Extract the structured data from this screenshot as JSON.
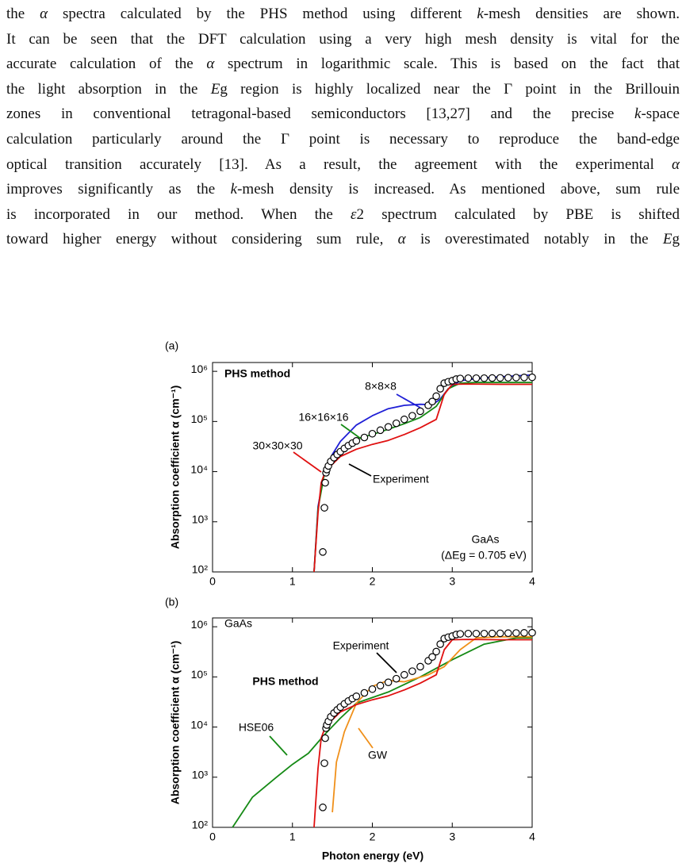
{
  "paragraph": {
    "lines": [
      [
        "the ",
        "α",
        " spectra calculated by the PHS method using different ",
        "k",
        "-mesh densities are shown."
      ],
      [
        "It can be seen that the DFT calculation using a very high mesh density is vital for the"
      ],
      [
        "accurate calculation of the ",
        "α",
        " spectrum in logarithmic scale. This is based on the fact that"
      ],
      [
        "the light absorption in the ",
        "E",
        "g region is highly localized near the Γ point in the Brillouin"
      ],
      [
        "zones in conventional tetragonal-based semiconductors [13,27] and the precise ",
        "k",
        "-space"
      ],
      [
        "calculation particularly around the Γ point is necessary to reproduce the band-edge"
      ],
      [
        "optical transition accurately [13]. As a result, the agreement with the experimental ",
        "α"
      ],
      [
        "improves significantly as the ",
        "k",
        "-mesh density is increased. As mentioned above, sum rule"
      ],
      [
        "is incorporated in our method. When the ",
        "ε",
        "2 spectrum calculated by PBE is shifted"
      ],
      [
        "toward higher energy without considering sum rule, ",
        "α",
        " is overestimated notably in the ",
        "E",
        "g"
      ]
    ]
  },
  "chart_data": [
    {
      "type": "line",
      "panel_label": "(a)",
      "title": "PHS method",
      "ylabel": "Absorption coefficient α (cm⁻¹)",
      "annotations": [
        "GaAs",
        "(ΔEg = 0.705 eV)"
      ],
      "xlim": [
        0,
        4
      ],
      "xticks": [
        0,
        1,
        2,
        3,
        4
      ],
      "ylim": [
        100,
        1500000
      ],
      "log_y": true,
      "yticks": [
        {
          "value": 100,
          "label": "10²"
        },
        {
          "value": 1000,
          "label": "10³"
        },
        {
          "value": 10000,
          "label": "10⁴"
        },
        {
          "value": 100000,
          "label": "10⁵"
        },
        {
          "value": 1000000,
          "label": "10⁶"
        }
      ],
      "series": [
        {
          "name": "Experiment",
          "marker": "circle",
          "color": "#000000",
          "x": [
            1.38,
            1.4,
            1.41,
            1.42,
            1.43,
            1.45,
            1.48,
            1.52,
            1.56,
            1.6,
            1.65,
            1.7,
            1.75,
            1.8,
            1.9,
            2.0,
            2.1,
            2.2,
            2.3,
            2.4,
            2.5,
            2.6,
            2.7,
            2.75,
            2.8,
            2.85,
            2.9,
            2.95,
            3.0,
            3.05,
            3.1,
            3.2,
            3.3,
            3.4,
            3.5,
            3.6,
            3.7,
            3.8,
            3.9,
            4.0
          ],
          "values": [
            250,
            1900,
            6000,
            9500,
            11000,
            13000,
            16000,
            19000,
            22000,
            25000,
            29000,
            33000,
            37000,
            41000,
            48000,
            57000,
            67000,
            78000,
            92000,
            110000,
            130000,
            160000,
            210000,
            250000,
            320000,
            450000,
            580000,
            620000,
            650000,
            700000,
            720000,
            730000,
            730000,
            730000,
            735000,
            740000,
            745000,
            750000,
            755000,
            760000
          ]
        },
        {
          "name": "8×8×8",
          "color": "#1f1fd6",
          "x": [
            1.27,
            1.32,
            1.4,
            1.5,
            1.6,
            1.8,
            2.0,
            2.2,
            2.4,
            2.6,
            2.75,
            2.85,
            2.95,
            3.1,
            3.3,
            3.6,
            4.0
          ],
          "values": [
            100,
            2000,
            10000,
            22000,
            40000,
            85000,
            130000,
            180000,
            210000,
            220000,
            215000,
            280000,
            450000,
            650000,
            720000,
            780000,
            850000
          ]
        },
        {
          "name": "16×16×16",
          "color": "#158a15",
          "x": [
            1.27,
            1.32,
            1.4,
            1.5,
            1.6,
            1.8,
            2.0,
            2.2,
            2.4,
            2.6,
            2.8,
            2.95,
            3.1,
            3.3,
            3.6,
            4.0
          ],
          "values": [
            100,
            1800,
            9000,
            16000,
            25000,
            45000,
            55000,
            70000,
            90000,
            120000,
            200000,
            450000,
            580000,
            600000,
            600000,
            600000
          ]
        },
        {
          "name": "30×30×30",
          "color": "#e01010",
          "x": [
            1.27,
            1.32,
            1.36,
            1.42,
            1.5,
            1.6,
            1.8,
            2.0,
            2.2,
            2.4,
            2.6,
            2.8,
            2.9,
            3.0,
            3.2,
            3.6,
            4.0
          ],
          "values": [
            100,
            1500,
            6000,
            11000,
            14000,
            20000,
            28000,
            35000,
            42000,
            55000,
            75000,
            110000,
            350000,
            550000,
            560000,
            550000,
            550000
          ]
        }
      ]
    },
    {
      "type": "line",
      "panel_label": "(b)",
      "title": "GaAs",
      "ylabel": "Absorption coefficient α (cm⁻¹)",
      "xlabel": "Photon energy (eV)",
      "xlim": [
        0,
        4
      ],
      "xticks": [
        0,
        1,
        2,
        3,
        4
      ],
      "ylim": [
        100,
        1500000
      ],
      "log_y": true,
      "yticks": [
        {
          "value": 100,
          "label": "10²"
        },
        {
          "value": 1000,
          "label": "10³"
        },
        {
          "value": 10000,
          "label": "10⁴"
        },
        {
          "value": 100000,
          "label": "10⁵"
        },
        {
          "value": 1000000,
          "label": "10⁶"
        }
      ],
      "series": [
        {
          "name": "Experiment",
          "marker": "circle",
          "color": "#000000",
          "x": [
            1.38,
            1.4,
            1.41,
            1.42,
            1.43,
            1.45,
            1.48,
            1.52,
            1.56,
            1.6,
            1.65,
            1.7,
            1.75,
            1.8,
            1.9,
            2.0,
            2.1,
            2.2,
            2.3,
            2.4,
            2.5,
            2.6,
            2.7,
            2.75,
            2.8,
            2.85,
            2.9,
            2.95,
            3.0,
            3.05,
            3.1,
            3.2,
            3.3,
            3.4,
            3.5,
            3.6,
            3.7,
            3.8,
            3.9,
            4.0
          ],
          "values": [
            250,
            1900,
            6000,
            9500,
            11000,
            13000,
            16000,
            19000,
            22000,
            25000,
            29000,
            33000,
            37000,
            41000,
            48000,
            57000,
            67000,
            78000,
            92000,
            110000,
            130000,
            160000,
            210000,
            250000,
            320000,
            450000,
            580000,
            620000,
            650000,
            700000,
            720000,
            730000,
            730000,
            730000,
            735000,
            740000,
            745000,
            750000,
            755000,
            760000
          ]
        },
        {
          "name": "HSE06",
          "color": "#158a15",
          "x": [
            0.25,
            0.5,
            0.8,
            1.0,
            1.2,
            1.4,
            1.6,
            1.8,
            2.2,
            2.6,
            3.0,
            3.4,
            3.8,
            4.0
          ],
          "values": [
            100,
            400,
            1000,
            1800,
            3000,
            7000,
            15000,
            30000,
            50000,
            100000,
            220000,
            450000,
            600000,
            600000
          ]
        },
        {
          "name": "GW",
          "color": "#f0901a",
          "x": [
            1.5,
            1.55,
            1.65,
            1.8,
            2.0,
            2.2,
            2.4,
            2.7,
            2.9,
            3.1,
            3.3,
            3.6,
            4.0
          ],
          "values": [
            200,
            2000,
            8000,
            30000,
            65000,
            85000,
            80000,
            110000,
            160000,
            350000,
            600000,
            630000,
            630000
          ]
        },
        {
          "name": "PHS method",
          "color": "#e01010",
          "bold": true,
          "x": [
            1.27,
            1.32,
            1.36,
            1.42,
            1.5,
            1.6,
            1.8,
            2.0,
            2.2,
            2.4,
            2.6,
            2.8,
            2.9,
            3.0,
            3.2,
            3.6,
            4.0
          ],
          "values": [
            100,
            1500,
            6000,
            11000,
            14000,
            20000,
            28000,
            35000,
            42000,
            55000,
            75000,
            110000,
            350000,
            550000,
            560000,
            550000,
            550000
          ]
        }
      ]
    }
  ]
}
